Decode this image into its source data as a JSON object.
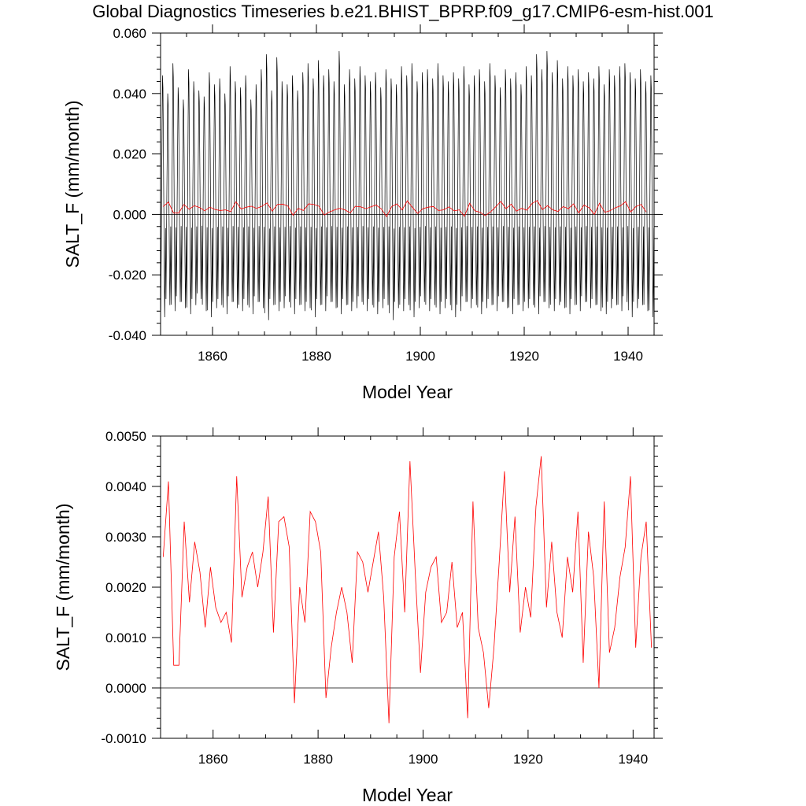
{
  "title": "Global Diagnostics Timeseries b.e21.BHIST_BPRP.f09_g17.CMIP6-esm-hist.001",
  "chart_data": [
    {
      "type": "line",
      "title": "",
      "xlabel": "Model Year",
      "ylabel": "SALT_F (mm/month)",
      "xlim": [
        1850,
        1945
      ],
      "ylim": [
        -0.04,
        0.06
      ],
      "xticks": [
        1860,
        1880,
        1900,
        1920,
        1940
      ],
      "xtick_labels": [
        "1860",
        "1880",
        "1900",
        "1920",
        "1940"
      ],
      "yticks": [
        -0.04,
        -0.02,
        0.0,
        0.02,
        0.04,
        0.06
      ],
      "ytick_labels": [
        "-0.040",
        "-0.020",
        "0.000",
        "0.020",
        "0.040",
        "0.060"
      ],
      "zero_line": true,
      "grid": false,
      "colors": {
        "monthly": "#000000",
        "annual": "#ff0000",
        "zero": "#000000"
      },
      "series": [
        {
          "key": "monthly",
          "note": "monthly values, seasonal cycle roughly -0.030 to 0.048",
          "monthly_climatology": [
            -0.028,
            -0.012,
            0.008,
            0.026,
            0.044,
            0.04,
            0.022,
            0.002,
            -0.016,
            -0.03,
            -0.02,
            -0.004
          ],
          "yearly_peak": [
            0.046,
            0.04,
            0.05,
            0.042,
            0.038,
            0.048,
            0.044,
            0.041,
            0.039,
            0.047,
            0.043,
            0.045,
            0.04,
            0.049,
            0.044,
            0.042,
            0.046,
            0.038,
            0.043,
            0.048,
            0.053,
            0.041,
            0.052,
            0.044,
            0.043,
            0.046,
            0.041,
            0.047,
            0.05,
            0.045,
            0.051,
            0.046,
            0.048,
            0.044,
            0.054,
            0.043,
            0.048,
            0.045,
            0.049,
            0.046,
            0.044,
            0.047,
            0.042,
            0.048,
            0.045,
            0.043,
            0.049,
            0.046,
            0.05,
            0.044,
            0.047,
            0.048,
            0.045,
            0.05,
            0.046,
            0.044,
            0.047,
            0.045,
            0.049,
            0.043,
            0.046,
            0.048,
            0.044,
            0.05,
            0.046,
            0.042,
            0.048,
            0.045,
            0.047,
            0.043,
            0.049,
            0.046,
            0.053,
            0.048,
            0.054,
            0.047,
            0.051,
            0.045,
            0.049,
            0.046,
            0.048,
            0.044,
            0.047,
            0.045,
            0.049,
            0.043,
            0.048,
            0.046,
            0.049,
            0.05,
            0.047,
            0.045,
            0.048,
            0.044,
            0.046
          ],
          "yearly_trough": [
            -0.034,
            -0.03,
            -0.032,
            -0.029,
            -0.031,
            -0.033,
            -0.03,
            -0.028,
            -0.032,
            -0.034,
            -0.031,
            -0.03,
            -0.033,
            -0.029,
            -0.031,
            -0.032,
            -0.03,
            -0.033,
            -0.029,
            -0.031,
            -0.035,
            -0.03,
            -0.032,
            -0.031,
            -0.029,
            -0.033,
            -0.03,
            -0.032,
            -0.031,
            -0.034,
            -0.03,
            -0.032,
            -0.029,
            -0.031,
            -0.033,
            -0.03,
            -0.032,
            -0.031,
            -0.029,
            -0.032,
            -0.03,
            -0.033,
            -0.031,
            -0.03,
            -0.035,
            -0.031,
            -0.032,
            -0.03,
            -0.034,
            -0.031,
            -0.029,
            -0.032,
            -0.03,
            -0.033,
            -0.031,
            -0.03,
            -0.034,
            -0.032,
            -0.029,
            -0.031,
            -0.03,
            -0.033,
            -0.031,
            -0.03,
            -0.032,
            -0.029,
            -0.031,
            -0.033,
            -0.03,
            -0.032,
            -0.031,
            -0.03,
            -0.033,
            -0.029,
            -0.031,
            -0.032,
            -0.03,
            -0.031,
            -0.033,
            -0.03,
            -0.032,
            -0.029,
            -0.031,
            -0.03,
            -0.032,
            -0.033,
            -0.031,
            -0.03,
            -0.032,
            -0.029,
            -0.034,
            -0.031,
            -0.03,
            -0.032,
            -0.034
          ]
        },
        {
          "key": "annual",
          "source": "panel 2 annual means",
          "x": [],
          "y": []
        }
      ]
    },
    {
      "type": "line",
      "title": "",
      "xlabel": "Model Year",
      "ylabel": "SALT_F (mm/month)",
      "xlim": [
        1850,
        1944
      ],
      "ylim": [
        -0.001,
        0.005
      ],
      "xticks": [
        1860,
        1880,
        1900,
        1920,
        1940
      ],
      "xtick_labels": [
        "1860",
        "1880",
        "1900",
        "1920",
        "1940"
      ],
      "yticks": [
        -0.001,
        0.0,
        0.001,
        0.002,
        0.003,
        0.004,
        0.005
      ],
      "ytick_labels": [
        "-0.0010",
        "0.0000",
        "0.0010",
        "0.0020",
        "0.0030",
        "0.0040",
        "0.0050"
      ],
      "zero_line": true,
      "grid": false,
      "colors": {
        "annual": "#ff0000",
        "zero": "#000000"
      },
      "series": [
        {
          "key": "annual",
          "x": [
            1850.5,
            1851.5,
            1852.5,
            1853.5,
            1854.5,
            1855.5,
            1856.5,
            1857.5,
            1858.5,
            1859.5,
            1860.5,
            1861.5,
            1862.5,
            1863.5,
            1864.5,
            1865.5,
            1866.5,
            1867.5,
            1868.5,
            1869.5,
            1870.5,
            1871.5,
            1872.5,
            1873.5,
            1874.5,
            1875.5,
            1876.5,
            1877.5,
            1878.5,
            1879.5,
            1880.5,
            1881.5,
            1882.5,
            1883.5,
            1884.5,
            1885.5,
            1886.5,
            1887.5,
            1888.5,
            1889.5,
            1890.5,
            1891.5,
            1892.5,
            1893.5,
            1894.5,
            1895.5,
            1896.5,
            1897.5,
            1898.5,
            1899.5,
            1900.5,
            1901.5,
            1902.5,
            1903.5,
            1904.5,
            1905.5,
            1906.5,
            1907.5,
            1908.5,
            1909.5,
            1910.5,
            1911.5,
            1912.5,
            1913.5,
            1914.5,
            1915.5,
            1916.5,
            1917.5,
            1918.5,
            1919.5,
            1920.5,
            1921.5,
            1922.5,
            1923.5,
            1924.5,
            1925.5,
            1926.5,
            1927.5,
            1928.5,
            1929.5,
            1930.5,
            1931.5,
            1932.5,
            1933.5,
            1934.5,
            1935.5,
            1936.5,
            1937.5,
            1938.5,
            1939.5,
            1940.5,
            1941.5,
            1942.5,
            1943.5
          ],
          "y": [
            0.0026,
            0.0041,
            0.00045,
            0.00045,
            0.0033,
            0.0017,
            0.0029,
            0.0023,
            0.0012,
            0.0024,
            0.0016,
            0.0013,
            0.0015,
            0.0009,
            0.0042,
            0.0018,
            0.0024,
            0.0027,
            0.002,
            0.0027,
            0.0038,
            0.0011,
            0.0033,
            0.0034,
            0.0028,
            -0.0003,
            0.002,
            0.0013,
            0.0035,
            0.0033,
            0.0027,
            -0.0002,
            0.0008,
            0.0015,
            0.002,
            0.0015,
            0.0005,
            0.0027,
            0.0025,
            0.0019,
            0.0025,
            0.0031,
            0.0018,
            -0.0007,
            0.0026,
            0.0035,
            0.0015,
            0.0045,
            0.0023,
            0.0003,
            0.0019,
            0.0024,
            0.0026,
            0.0013,
            0.0015,
            0.0025,
            0.0012,
            0.0015,
            -0.0006,
            0.0037,
            0.0012,
            0.0007,
            -0.0004,
            0.0008,
            0.0025,
            0.0043,
            0.0019,
            0.0034,
            0.0011,
            0.002,
            0.0014,
            0.0036,
            0.0046,
            0.0016,
            0.0029,
            0.0015,
            0.001,
            0.0026,
            0.0019,
            0.0035,
            0.0005,
            0.0031,
            0.0022,
            0.0,
            0.0037,
            0.0007,
            0.0012,
            0.0022,
            0.0028,
            0.0042,
            0.0008,
            0.0026,
            0.0033,
            0.0008
          ]
        }
      ]
    }
  ]
}
